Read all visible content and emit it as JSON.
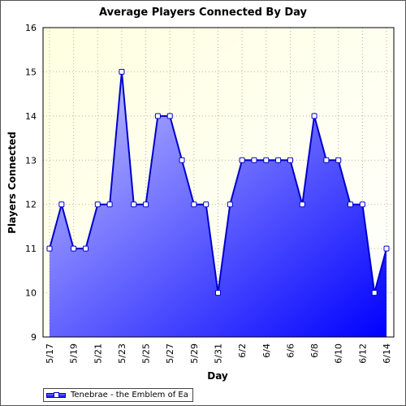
{
  "chart_data": {
    "type": "area",
    "title": "Average Players Connected By Day",
    "xlabel": "Day",
    "ylabel": "Players Connected",
    "ylim": [
      9,
      16
    ],
    "yticks": [
      9,
      10,
      11,
      12,
      13,
      14,
      15,
      16
    ],
    "xtick_labels": [
      "5/17",
      "5/19",
      "5/21",
      "5/23",
      "5/25",
      "5/27",
      "5/29",
      "5/31",
      "6/2",
      "6/4",
      "6/6",
      "6/8",
      "6/10",
      "6/12",
      "6/14"
    ],
    "categories": [
      "5/17",
      "5/18",
      "5/19",
      "5/20",
      "5/21",
      "5/22",
      "5/23",
      "5/24",
      "5/25",
      "5/26",
      "5/27",
      "5/28",
      "5/29",
      "5/30",
      "5/31",
      "6/1",
      "6/2",
      "6/3",
      "6/4",
      "6/5",
      "6/6",
      "6/7",
      "6/8",
      "6/9",
      "6/10",
      "6/11",
      "6/12",
      "6/13",
      "6/14"
    ],
    "series": [
      {
        "name": "Tenebrae - the Emblem of Ea",
        "values": [
          11,
          12,
          11,
          11,
          12,
          12,
          15,
          12,
          12,
          14,
          14,
          13,
          12,
          12,
          10,
          12,
          13,
          13,
          13,
          13,
          13,
          12,
          14,
          13,
          13,
          12,
          12,
          10,
          11
        ]
      }
    ],
    "grid": true,
    "legend": "bottom-left",
    "colors": {
      "plot_background": "#FFFFE0",
      "line": "#0000CC",
      "fill_light": "#C8C8FF",
      "fill_dark": "#0000FF",
      "marker_fill": "#FFFFFF"
    }
  }
}
